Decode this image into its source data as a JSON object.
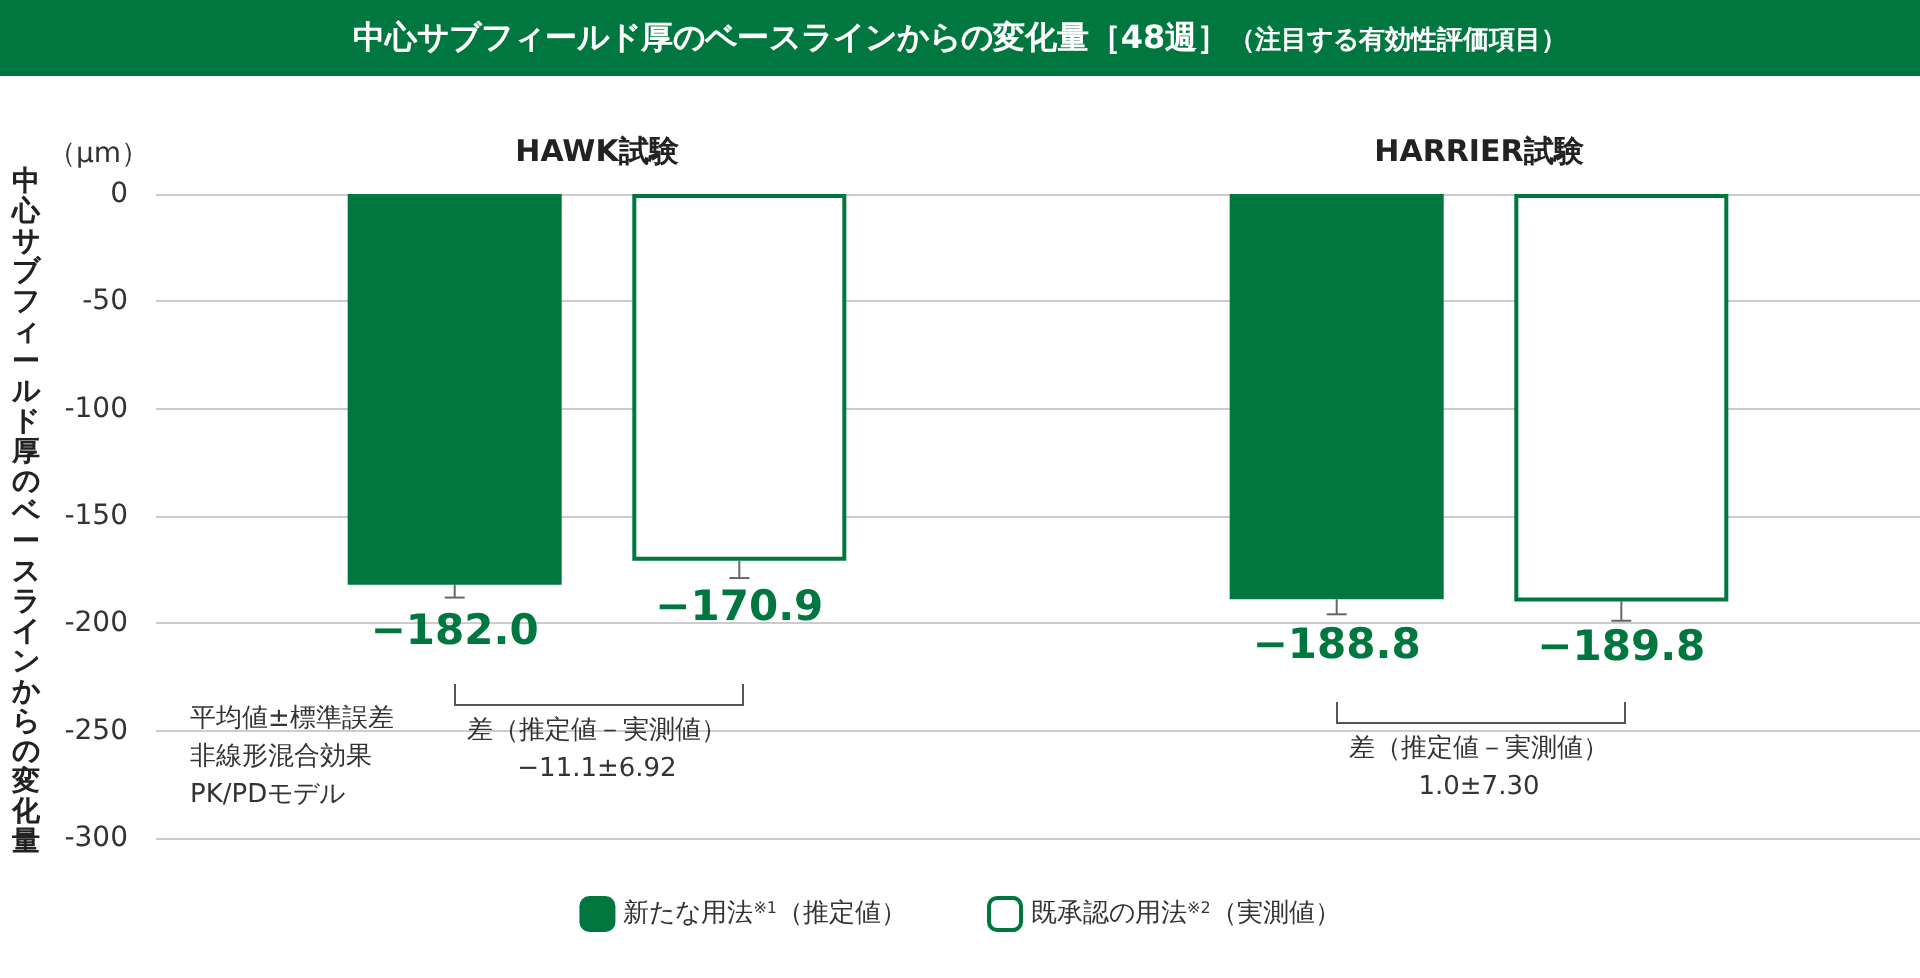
{
  "chart_data": {
    "type": "bar",
    "title": "中心サブフィールド厚のベースラインからの変化量［48週］",
    "subtitle": "（注目する有効性評価項目）",
    "ylabel": "中心サブフィールド厚のベースラインからの変化量",
    "categories": [
      "HAWK試験",
      "HARRIER試験"
    ],
    "series": [
      {
        "name": "新たな用法$^{※1}$（推定値）",
        "color": "#00773f",
        "values": [
          -182.0,
          -188.8
        ],
        "errors": [
          6,
          7
        ],
        "value_labels": [
          "−182.0",
          "−188.8"
        ]
      },
      {
        "name": "既承認の用法$^{※2}$（実測値）",
        "color": "#ffffff",
        "values": [
          -170.9,
          -189.8
        ],
        "errors": [
          8,
          9
        ],
        "value_labels": [
          "−170.9",
          "−189.8"
        ]
      }
    ],
    "annotations": [
      "（μm）",
      "平均値±標準誤差",
      "非線形混合効果",
      "PK/PDモデル",
      "差（推定値－実測値）",
      "−11.1±6.92",
      "差（推定値－実測値）",
      "1.0±7.30"
    ],
    "ylim": [
      -300,
      0
    ],
    "yticks": [
      0,
      -50,
      -100,
      -150,
      -200,
      -250,
      -300
    ],
    "grid": "y",
    "legend": "bottom"
  }
}
